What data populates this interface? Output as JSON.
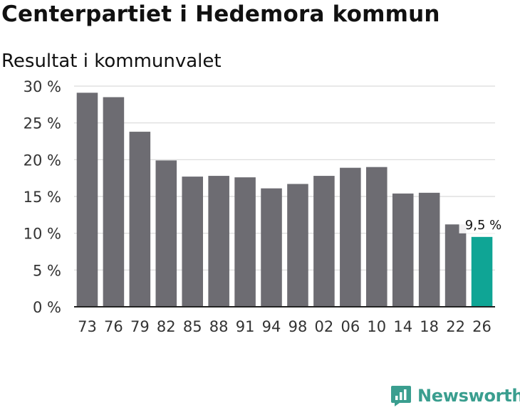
{
  "title": "Centerpartiet i Hedemora kommun",
  "subtitle": "Resultat i kommunvalet",
  "brand": {
    "name": "Newsworthy",
    "icon": "newsworthy-logo-icon",
    "color": "#3a9e8f"
  },
  "colors": {
    "bar": "#6d6c72",
    "highlight": "#0fa595",
    "grid": "#d9d9d9",
    "axis": "#222222"
  },
  "chart_data": {
    "type": "bar",
    "title": "",
    "xlabel": "",
    "ylabel": "",
    "ylim": [
      0,
      30
    ],
    "yticks": [
      "0 %",
      "5 %",
      "10 %",
      "15 %",
      "20 %",
      "25 %",
      "30 %"
    ],
    "categories": [
      "73",
      "76",
      "79",
      "82",
      "85",
      "88",
      "91",
      "94",
      "98",
      "02",
      "06",
      "10",
      "14",
      "18",
      "22",
      "26"
    ],
    "values": [
      29.1,
      28.5,
      23.8,
      19.9,
      17.7,
      17.8,
      17.6,
      16.1,
      16.7,
      17.8,
      18.9,
      19.0,
      15.4,
      15.5,
      11.2,
      9.5
    ],
    "highlight_index": 15,
    "annotation": "9,5 %",
    "grid": true
  }
}
